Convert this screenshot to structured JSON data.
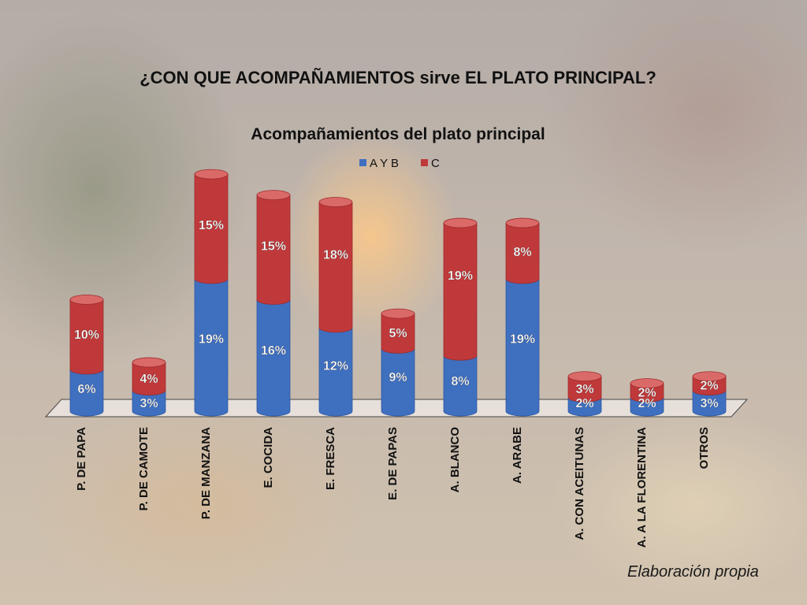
{
  "slide": {
    "title": "¿CON QUE ACOMPAÑAMIENTOS sirve EL PLATO PRINCIPAL?",
    "source_note": "Elaboración propia"
  },
  "chart_data": {
    "type": "bar",
    "stacked": true,
    "style": "3d-cylinder",
    "title": "Acompañamientos del plato principal",
    "legend_position": "top",
    "categories": [
      "P. DE PAPA",
      "P. DE CAMOTE",
      "P. DE MANZANA",
      "E. COCIDA",
      "E. FRESCA",
      "E. DE PAPAS",
      "A. BLANCO",
      "A. ARABE",
      "A. CON ACEITUNAS",
      "A. A LA FLORENTINA",
      "OTROS"
    ],
    "series": [
      {
        "name": "A Y B",
        "color": "#3f6fbf",
        "values": [
          6,
          3,
          19,
          16,
          12,
          9,
          8,
          19,
          2,
          2,
          3
        ],
        "labels": [
          "6%",
          "3%",
          "19%",
          "16%",
          "12%",
          "9%",
          "8%",
          "19%",
          "2%",
          "2%",
          "3%"
        ]
      },
      {
        "name": "C",
        "color": "#c0393a",
        "values": [
          10,
          4,
          15,
          15,
          18,
          5,
          19,
          8,
          3,
          2,
          2
        ],
        "labels": [
          "10%",
          "4%",
          "15%",
          "15%",
          "18%",
          "5%",
          "19%",
          "8%",
          "3%",
          "2%",
          "2%"
        ]
      }
    ],
    "ylim": [
      0,
      36
    ],
    "grid": false
  }
}
